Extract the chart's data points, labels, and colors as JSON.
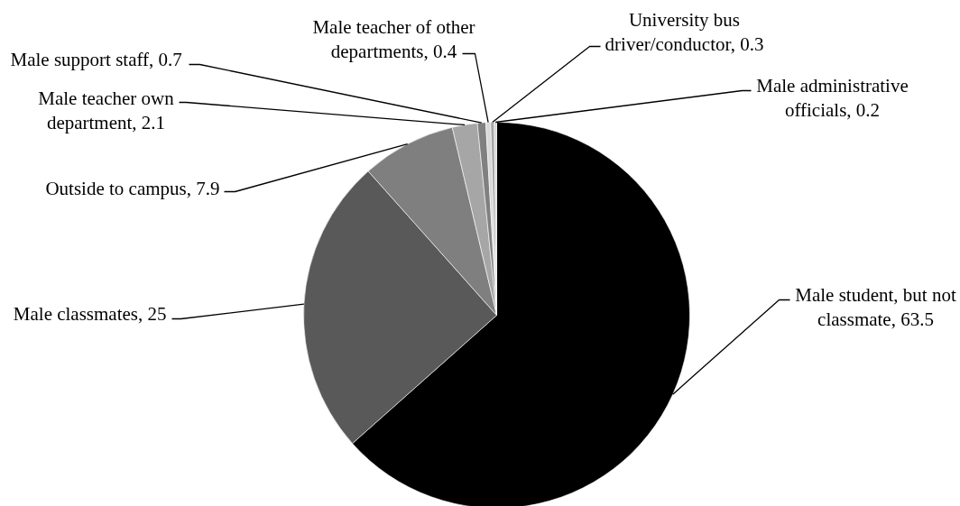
{
  "chart_data": {
    "type": "pie",
    "categories": [
      "Male student, but not classmate, 63.5",
      "Male classmates, 25",
      "Outside to campus, 7.9",
      "Male teacher own department, 2.1",
      "Male support staff, 0.7",
      "Male teacher of other departments, 0.4",
      "University bus driver/conductor, 0.3",
      "Male administrative officials, 0.2"
    ],
    "values": [
      63.5,
      25,
      7.9,
      2.1,
      0.7,
      0.4,
      0.3,
      0.2
    ],
    "colors": [
      "#000000",
      "#595959",
      "#7f7f7f",
      "#a6a6a6",
      "#808080",
      "#d9d9d9",
      "#a6a6a6",
      "#d9d9d9"
    ]
  }
}
